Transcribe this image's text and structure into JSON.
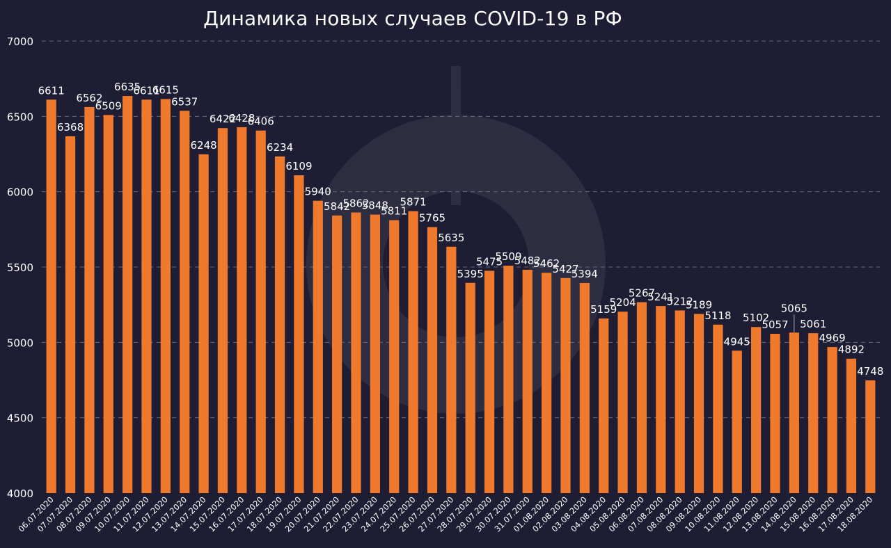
{
  "chart_data": {
    "type": "bar",
    "title": "Динамика новых случаев COVID-19 в РФ",
    "xlabel": "",
    "ylabel": "",
    "ylim": [
      4000,
      7000
    ],
    "yticks": [
      "4000",
      "4500",
      "5000",
      "5500",
      "6000",
      "6500",
      "7000"
    ],
    "grid": "horizontal-dashed",
    "legend": "none",
    "colors": {
      "background": "#1f1d33",
      "bar": "#ef7a2e",
      "text": "#ffffff",
      "grid": "#6a6880"
    },
    "categories": [
      "06.07.2020",
      "07.07.2020",
      "08.07.2020",
      "09.07.2020",
      "10.07.2020",
      "11.07.2020",
      "12.07.2020",
      "13.07.2020",
      "14.07.2020",
      "15.07.2020",
      "16.07.2020",
      "17.07.2020",
      "18.07.2020",
      "19.07.2020",
      "20.07.2020",
      "21.07.2020",
      "22.07.2020",
      "23.07.2020",
      "24.07.2020",
      "25.07.2020",
      "26.07.2020",
      "27.07.2020",
      "28.07.2020",
      "29.07.2020",
      "30.07.2020",
      "31.07.2020",
      "01.08.2020",
      "02.08.2020",
      "03.08.2020",
      "04.08.2020",
      "05.08.2020",
      "06.08.2020",
      "07.08.2020",
      "08.08.2020",
      "09.08.2020",
      "10.08.2020",
      "11.08.2020",
      "12.08.2020",
      "13.08.2020",
      "14.08.2020",
      "15.08.2020",
      "16.08.2020",
      "17.08.2020",
      "18.08.2020"
    ],
    "values": [
      6611,
      6368,
      6562,
      6509,
      6635,
      6611,
      6615,
      6537,
      6248,
      6422,
      6428,
      6406,
      6234,
      6109,
      5940,
      5842,
      5862,
      5848,
      5811,
      5871,
      5765,
      5635,
      5395,
      5475,
      5509,
      5482,
      5462,
      5427,
      5394,
      5159,
      5204,
      5267,
      5241,
      5212,
      5189,
      5118,
      4945,
      5102,
      5057,
      5065,
      5061,
      4969,
      4892,
      4748
    ]
  }
}
